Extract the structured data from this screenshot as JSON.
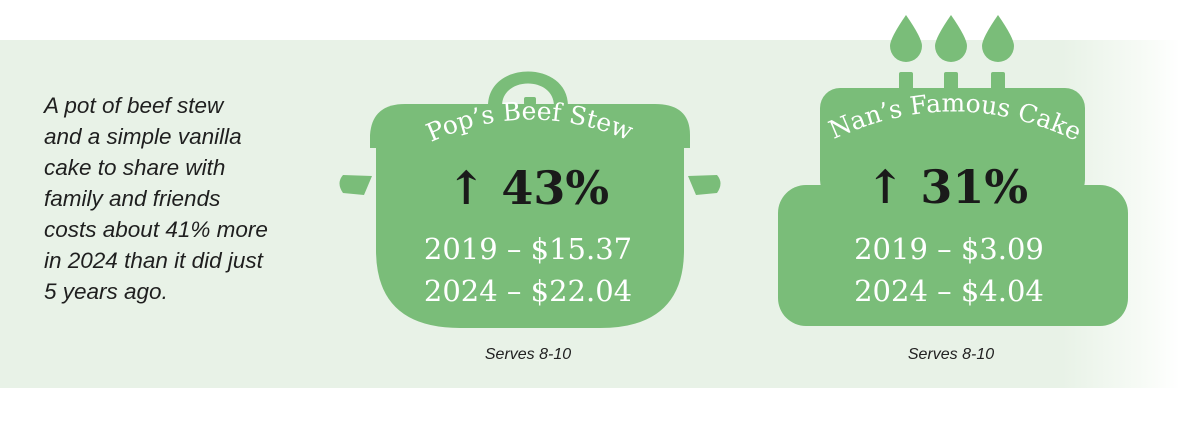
{
  "intro": {
    "lines": [
      "A pot of beef stew",
      "and a simple vanilla",
      "cake to share with",
      "family and friends",
      "costs about 41% more",
      "in 2024 than it did just",
      "5 years ago."
    ]
  },
  "colors": {
    "background_band": "#e8f2e7",
    "shape_fill": "#7abd79",
    "text_dark": "#1a1a1a",
    "text_light": "#ffffff"
  },
  "items": [
    {
      "name": "Pop’s Beef Stew",
      "icon": "stew-pot-icon",
      "change": "↑ 43%",
      "prices": [
        "2019 – $15.37",
        "2024 – $22.04"
      ],
      "serves": "Serves 8-10"
    },
    {
      "name": "Nan’s Famous Cake",
      "icon": "cake-with-candles-icon",
      "change": "↑ 31%",
      "prices": [
        "2019 – $3.09",
        "2024 – $4.04"
      ],
      "serves": "Serves 8-10"
    }
  ]
}
